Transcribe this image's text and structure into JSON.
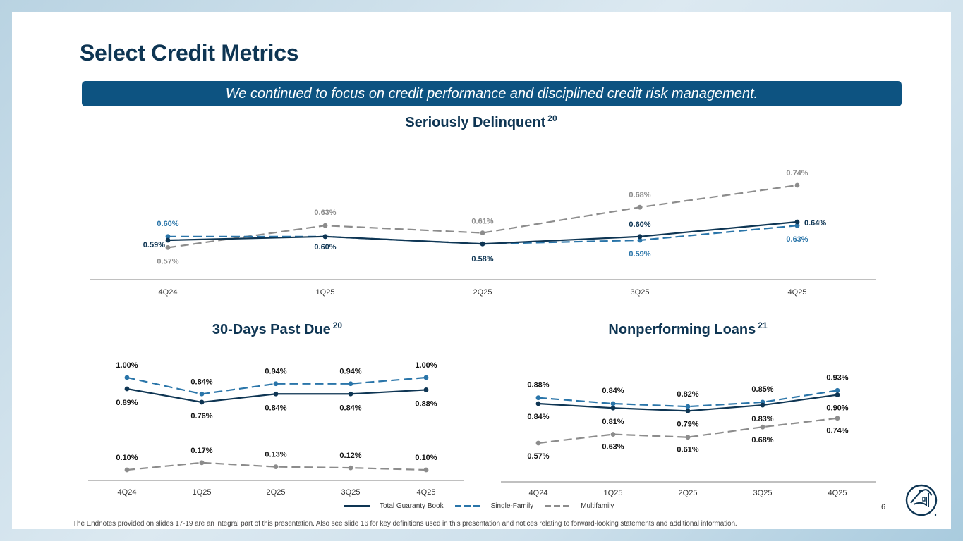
{
  "slide": {
    "title": "Select Credit Metrics",
    "banner": "We continued to focus on credit performance and disciplined credit risk management.",
    "page_number": "6",
    "footnote": "The Endnotes provided on slides 17-19 are an integral part of this presentation. Also see slide 16 for key definitions used in this presentation and notices relating to forward-looking statements and additional information.",
    "logo_icon": "house-in-circle-logo-icon"
  },
  "colors": {
    "total": "#0e3553",
    "single_family": "#2a75a9",
    "multifamily": "#8c8c8c",
    "banner_bg": "#0d5381",
    "title": "#0e3553"
  },
  "legend": [
    {
      "name": "Total Guaranty Book",
      "style": "solid",
      "color": "#0e3553"
    },
    {
      "name": "Single-Family",
      "style": "dashed",
      "color": "#2a75a9"
    },
    {
      "name": "Multifamily",
      "style": "dashed",
      "color": "#8c8c8c"
    }
  ],
  "chart_data": [
    {
      "type": "line",
      "title": "Seriously Delinquent",
      "title_footnote": "20",
      "categories": [
        "4Q24",
        "1Q25",
        "2Q25",
        "3Q25",
        "4Q25"
      ],
      "unit": "%",
      "ylim": [
        0.5,
        0.8
      ],
      "grid": false,
      "series": [
        {
          "name": "Total Guaranty Book",
          "values": [
            0.59,
            0.6,
            0.58,
            0.6,
            0.64
          ],
          "labels": [
            "0.59%",
            "0.60%",
            "0.58%",
            "0.60%",
            "0.64%"
          ]
        },
        {
          "name": "Single-Family",
          "values": [
            0.6,
            0.6,
            0.58,
            0.59,
            0.63
          ],
          "labels": [
            "0.60%",
            "",
            "",
            "0.59%",
            "0.63%"
          ]
        },
        {
          "name": "Multifamily",
          "values": [
            0.57,
            0.63,
            0.61,
            0.68,
            0.74
          ],
          "labels": [
            "0.57%",
            "0.63%",
            "0.61%",
            "0.68%",
            "0.74%"
          ]
        }
      ]
    },
    {
      "type": "line",
      "title": "30-Days Past Due",
      "title_footnote": "20",
      "categories": [
        "4Q24",
        "1Q25",
        "2Q25",
        "3Q25",
        "4Q25"
      ],
      "unit": "%",
      "ylim": [
        0.0,
        1.1
      ],
      "grid": false,
      "series": [
        {
          "name": "Total Guaranty Book",
          "values": [
            0.89,
            0.76,
            0.84,
            0.84,
            0.88
          ],
          "labels": [
            "0.89%",
            "0.76%",
            "0.84%",
            "0.84%",
            "0.88%"
          ]
        },
        {
          "name": "Single-Family",
          "values": [
            1.0,
            0.84,
            0.94,
            0.94,
            1.0
          ],
          "labels": [
            "1.00%",
            "0.84%",
            "0.94%",
            "0.94%",
            "1.00%"
          ]
        },
        {
          "name": "Multifamily",
          "values": [
            0.1,
            0.17,
            0.13,
            0.12,
            0.1
          ],
          "labels": [
            "0.10%",
            "0.17%",
            "0.13%",
            "0.12%",
            "0.10%"
          ]
        }
      ]
    },
    {
      "type": "line",
      "title": "Nonperforming Loans",
      "title_footnote": "21",
      "categories": [
        "4Q24",
        "1Q25",
        "2Q25",
        "3Q25",
        "4Q25"
      ],
      "unit": "%",
      "ylim": [
        0.4,
        1.05
      ],
      "grid": false,
      "series": [
        {
          "name": "Total Guaranty Book",
          "values": [
            0.84,
            0.81,
            0.79,
            0.83,
            0.9
          ],
          "labels": [
            "0.84%",
            "0.81%",
            "0.79%",
            "0.83%",
            "0.90%"
          ]
        },
        {
          "name": "Single-Family",
          "values": [
            0.88,
            0.84,
            0.82,
            0.85,
            0.93
          ],
          "labels": [
            "0.88%",
            "0.84%",
            "0.82%",
            "0.85%",
            "0.93%"
          ]
        },
        {
          "name": "Multifamily",
          "values": [
            0.57,
            0.63,
            0.61,
            0.68,
            0.74
          ],
          "labels": [
            "0.57%",
            "0.63%",
            "0.61%",
            "0.68%",
            "0.74%"
          ]
        }
      ]
    }
  ]
}
